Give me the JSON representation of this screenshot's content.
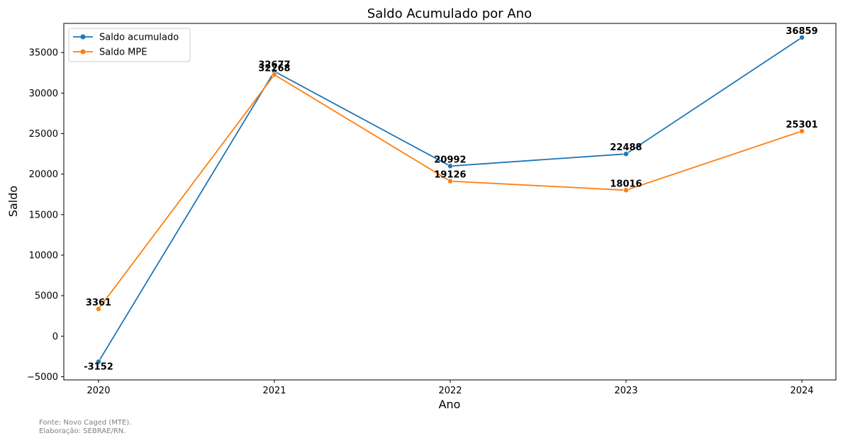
{
  "chart_data": {
    "type": "line",
    "title": "Saldo Acumulado por Ano",
    "xlabel": "Ano",
    "ylabel": "Saldo",
    "categories": [
      "2020",
      "2021",
      "2022",
      "2023",
      "2024"
    ],
    "ylim": [
      -5400,
      38600
    ],
    "yticks": [
      -5000,
      0,
      5000,
      10000,
      15000,
      20000,
      25000,
      30000,
      35000
    ],
    "grid": false,
    "legend_position": "top-left",
    "series": [
      {
        "name": "Saldo acumulado",
        "color": "#1f77b4",
        "values": [
          -3152,
          32677,
          20992,
          22488,
          36859
        ]
      },
      {
        "name": "Saldo MPE",
        "color": "#ff7f0e",
        "values": [
          3361,
          32268,
          19126,
          18016,
          25301
        ]
      }
    ]
  },
  "footnote": {
    "source": "Fonte: Novo Caged (MTE).",
    "credit": "Elaboração: SEBRAE/RN."
  }
}
